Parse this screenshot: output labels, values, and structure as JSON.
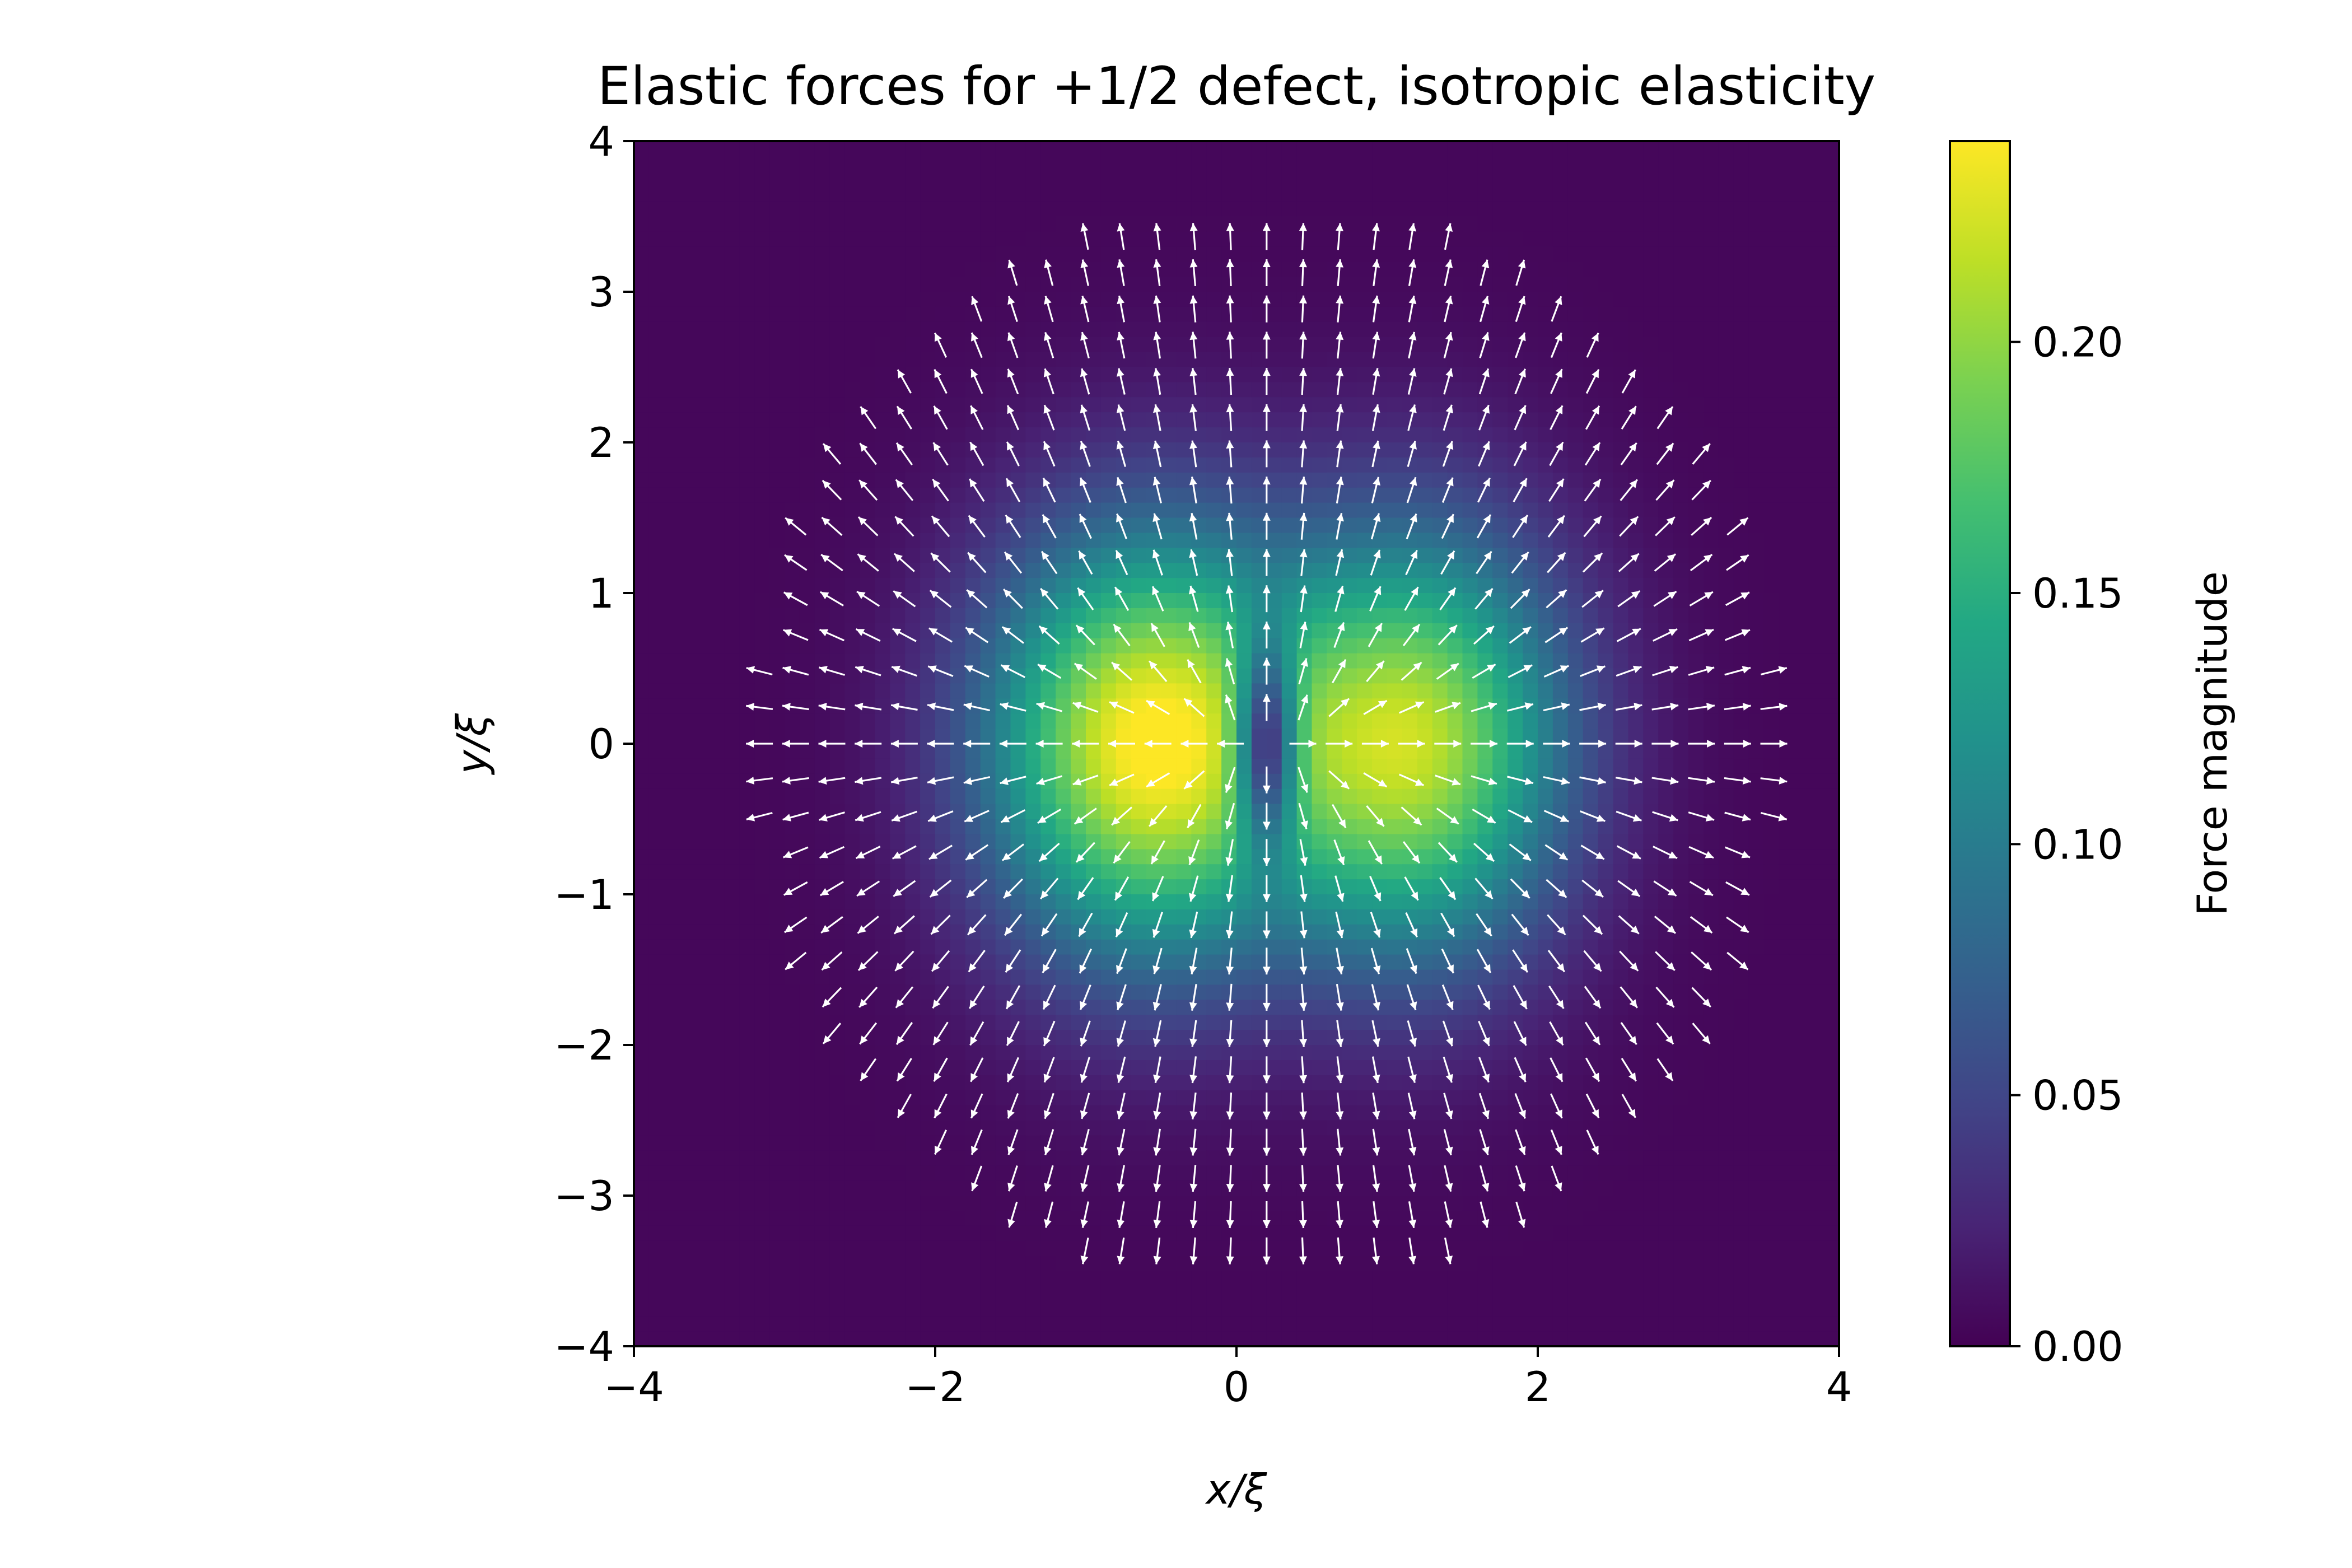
{
  "chart_data": {
    "type": "heatmap",
    "title": "Elastic forces for +1/2 defect, isotropic elasticity",
    "xlabel": "x/ξ",
    "ylabel": "y/ξ",
    "xlim": [
      -4,
      4
    ],
    "ylim": [
      -4,
      4
    ],
    "xticks": [
      {
        "value": -4,
        "label": "−4"
      },
      {
        "value": -2,
        "label": "−2"
      },
      {
        "value": 0,
        "label": "0"
      },
      {
        "value": 2,
        "label": "2"
      },
      {
        "value": 4,
        "label": "4"
      }
    ],
    "yticks": [
      {
        "value": -4,
        "label": "−4"
      },
      {
        "value": -3,
        "label": "−3"
      },
      {
        "value": -2,
        "label": "−2"
      },
      {
        "value": -1,
        "label": "−1"
      },
      {
        "value": 0,
        "label": "0"
      },
      {
        "value": 1,
        "label": "1"
      },
      {
        "value": 2,
        "label": "2"
      },
      {
        "value": 3,
        "label": "3"
      },
      {
        "value": 4,
        "label": "4"
      }
    ],
    "colormap": "viridis",
    "colorbar": {
      "label": "Force magnitude",
      "vmin": 0.0,
      "vmax": 0.24,
      "ticks": [
        {
          "value": 0.0,
          "label": "0.00"
        },
        {
          "value": 0.05,
          "label": "0.05"
        },
        {
          "value": 0.1,
          "label": "0.10"
        },
        {
          "value": 0.15,
          "label": "0.15"
        },
        {
          "value": 0.2,
          "label": "0.20"
        }
      ]
    },
    "field": {
      "description_model": "two-lobed magnitude field with maxima near (-0.6, 0) and (1.2, 0), minimum near the defect core at (0.2, 0)",
      "lobes": [
        {
          "center": [
            -0.6,
            0.0
          ],
          "peak": 0.235,
          "sigma_x": 0.75,
          "sigma_y": 1.0
        },
        {
          "center": [
            1.2,
            0.0
          ],
          "peak": 0.205,
          "sigma_x": 0.7,
          "sigma_y": 1.0
        }
      ],
      "core_center": [
        0.2,
        0.0
      ],
      "grid_resolution": 80
    },
    "quiver": {
      "color": "#ffffff",
      "grid_spacing": 0.2405,
      "cutoff_radius": 3.6,
      "core_center": [
        0.2,
        0.0
      ],
      "pattern": "outward radial-like field, elongated along y"
    }
  }
}
